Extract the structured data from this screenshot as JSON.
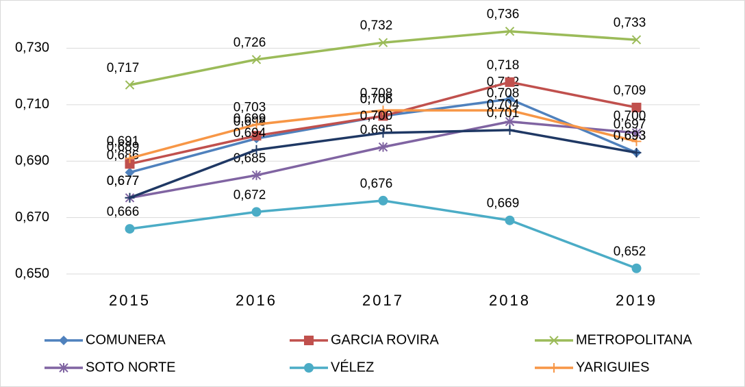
{
  "chart_data": {
    "type": "line",
    "categories": [
      "2015",
      "2016",
      "2017",
      "2018",
      "2019"
    ],
    "ylim": [
      0.65,
      0.742
    ],
    "yticks": [
      {
        "value": 0.65,
        "label": "0,650"
      },
      {
        "value": 0.67,
        "label": "0,670"
      },
      {
        "value": 0.69,
        "label": "0,690"
      },
      {
        "value": 0.71,
        "label": "0,710"
      },
      {
        "value": 0.73,
        "label": "0,730"
      }
    ],
    "grid": true,
    "legend": "bottom",
    "series": [
      {
        "name": "COMUNERA",
        "color": "#4f81bd",
        "marker": "diamond",
        "values": [
          0.686,
          0.698,
          0.706,
          0.712,
          0.693
        ],
        "value_labels": [
          "0,686",
          "0,698",
          "0,706",
          "0,712",
          "0,693"
        ]
      },
      {
        "name": "GARCIA ROVIRA",
        "color": "#c0504d",
        "marker": "square",
        "values": [
          0.689,
          0.699,
          0.706,
          0.718,
          0.709
        ],
        "value_labels": [
          "0,689",
          "0,699",
          "0,706",
          "0,718",
          "0,709"
        ]
      },
      {
        "name": "METROPOLITANA",
        "color": "#9bbb59",
        "marker": "x",
        "values": [
          0.717,
          0.726,
          0.732,
          0.736,
          0.733
        ],
        "value_labels": [
          "0,717",
          "0,726",
          "0,732",
          "0,736",
          "0,733"
        ]
      },
      {
        "name": "SOTO NORTE",
        "color": "#8064a2",
        "marker": "star",
        "values": [
          0.677,
          0.685,
          0.695,
          0.704,
          0.7
        ],
        "value_labels": [
          "0,677",
          "0,685",
          "0,695",
          "0,704",
          "0,700"
        ]
      },
      {
        "name": "VÉLEZ",
        "color": "#4bacc6",
        "marker": "circle",
        "values": [
          0.666,
          0.672,
          0.676,
          0.669,
          0.652
        ],
        "value_labels": [
          "0,666",
          "0,672",
          "0,676",
          "0,669",
          "0,652"
        ]
      },
      {
        "name": "YARIGUIES",
        "color": "#f79646",
        "marker": "plus",
        "values": [
          0.691,
          0.703,
          0.708,
          0.708,
          0.697
        ],
        "value_labels": [
          "0,691",
          "0,703",
          "0,708",
          "0,708",
          "0,697"
        ]
      },
      {
        "color": "#1f3864",
        "marker": "plus",
        "values": [
          0.677,
          0.694,
          0.7,
          0.701,
          0.693
        ],
        "value_labels": [
          "0,677",
          "0,694",
          "0,700",
          "0,701",
          "0,693"
        ]
      }
    ]
  }
}
